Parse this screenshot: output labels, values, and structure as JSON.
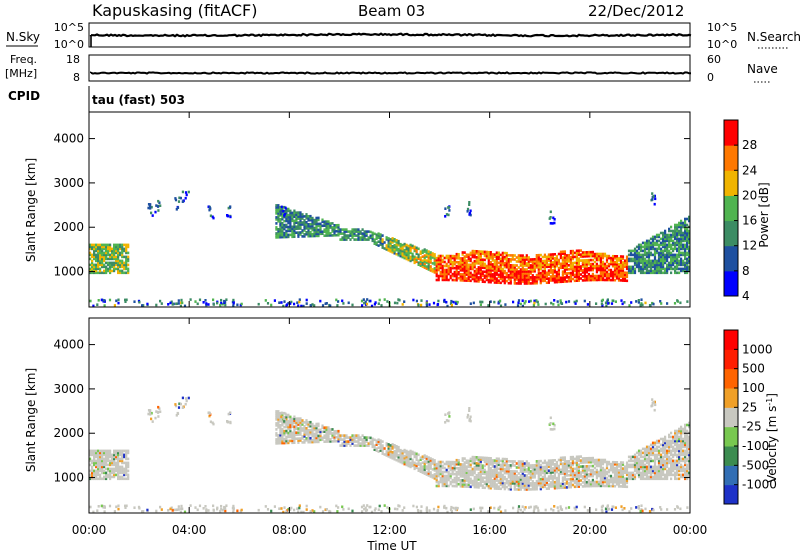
{
  "header": {
    "station": "Kapuskasing (fitACF)",
    "beam": "Beam 03",
    "date": "22/Dec/2012"
  },
  "top_panels": {
    "nsky_label": "N.Sky",
    "nsky_ticks": [
      "10^5",
      "10^0"
    ],
    "nsearch_label": "N.Search",
    "nsearch_ticks": [
      "10^5",
      "10^0"
    ],
    "freq_label_1": "Freq.",
    "freq_label_2": "[MHz]",
    "freq_ticks": [
      "18",
      "8"
    ],
    "nave_label": "Nave",
    "nave_ticks": [
      "60",
      "0"
    ],
    "cpid_label": "CPID",
    "cpid_text": "tau (fast) 503"
  },
  "chart_data": [
    {
      "type": "heatmap",
      "name": "power",
      "ylabel": "Slant Range [km]",
      "yticks": [
        "4000",
        "3000",
        "2000",
        "1000"
      ],
      "ylim": [
        200,
        4600
      ],
      "xlim": [
        0,
        24
      ],
      "colorbar_label": "Power [dB]",
      "colorbar_ticks": [
        "28",
        "24",
        "20",
        "16",
        "12",
        "8",
        "4"
      ],
      "colors": [
        "#0000ff",
        "#1e50a0",
        "#3c8c64",
        "#50b450",
        "#f0b400",
        "#ff7800",
        "#ff0000"
      ],
      "echo_regions": [
        {
          "t0": 0.0,
          "t1": 1.6,
          "r_low": 1000,
          "r_high": 1600,
          "level": 3
        },
        {
          "t0": 7.4,
          "t1": 11.0,
          "r_low": 1700,
          "r_high": 2600,
          "level": 2
        },
        {
          "t0": 11.0,
          "t1": 13.8,
          "r_low": 1000,
          "r_high": 2000,
          "level": 2
        },
        {
          "t0": 13.8,
          "t1": 21.5,
          "r_low": 800,
          "r_high": 1500,
          "level": 5
        },
        {
          "t0": 21.5,
          "t1": 24.0,
          "r_low": 1000,
          "r_high": 2300,
          "level": 2
        }
      ]
    },
    {
      "type": "heatmap",
      "name": "velocity",
      "xlabel": "Time UT",
      "xticks": [
        "00:00",
        "04:00",
        "08:00",
        "12:00",
        "16:00",
        "20:00",
        "00:00"
      ],
      "ylabel": "Slant Range [km]",
      "yticks": [
        "4000",
        "3000",
        "2000",
        "1000"
      ],
      "ylim": [
        200,
        4600
      ],
      "xlim": [
        0,
        24
      ],
      "colorbar_label": "Velocity [m s^-1]",
      "colorbar_ticks": [
        "1000",
        "500",
        "100",
        "25",
        "-25",
        "-100",
        "-500",
        "-1000"
      ],
      "colors": [
        "#1e32c8",
        "#326eb4",
        "#3c8c50",
        "#78c850",
        "#c8c8c0",
        "#f0a028",
        "#ff6400",
        "#ff1e00",
        "#ff0000"
      ]
    }
  ]
}
